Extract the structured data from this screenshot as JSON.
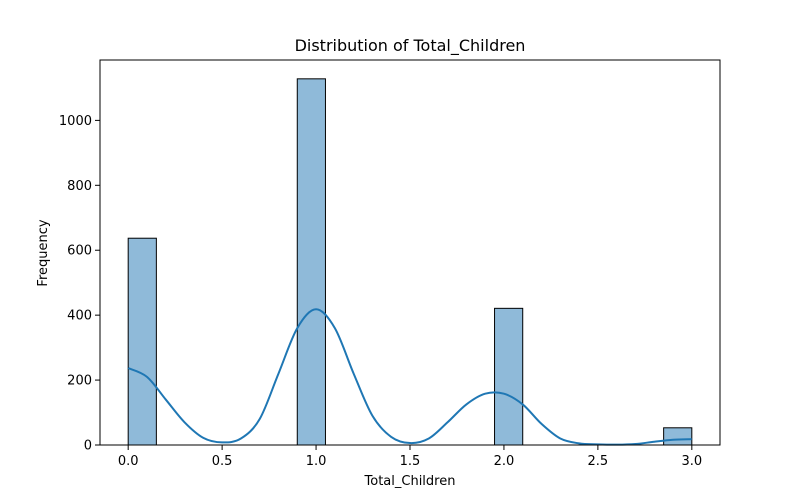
{
  "chart_data": {
    "type": "bar",
    "title": "Distribution of Total_Children",
    "xlabel": "Total_Children",
    "ylabel": "Frequency",
    "xlim": [
      -0.15,
      3.15
    ],
    "ylim": [
      0,
      1186
    ],
    "xticks": [
      0.0,
      0.5,
      1.0,
      1.5,
      2.0,
      2.5,
      3.0
    ],
    "xtick_labels": [
      "0.0",
      "0.5",
      "1.0",
      "1.5",
      "2.0",
      "2.5",
      "3.0"
    ],
    "yticks": [
      0,
      200,
      400,
      600,
      800,
      1000
    ],
    "ytick_labels": [
      "0",
      "200",
      "400",
      "600",
      "800",
      "1000"
    ],
    "bins": [
      {
        "x0": 0.0,
        "x1": 0.15,
        "count": 637
      },
      {
        "x0": 0.9,
        "x1": 1.05,
        "count": 1128
      },
      {
        "x0": 1.95,
        "x1": 2.1,
        "count": 421
      },
      {
        "x0": 2.85,
        "x1": 3.0,
        "count": 53
      }
    ],
    "kde": {
      "x": [
        0.0,
        0.1,
        0.2,
        0.3,
        0.4,
        0.5,
        0.6,
        0.7,
        0.8,
        0.9,
        1.0,
        1.1,
        1.2,
        1.3,
        1.4,
        1.5,
        1.6,
        1.7,
        1.8,
        1.9,
        2.0,
        2.1,
        2.2,
        2.3,
        2.4,
        2.5,
        2.6,
        2.7,
        2.8,
        2.9,
        3.0
      ],
      "y": [
        237,
        210,
        140,
        70,
        22,
        8,
        20,
        80,
        220,
        360,
        418,
        360,
        220,
        90,
        25,
        6,
        20,
        70,
        125,
        158,
        158,
        125,
        65,
        20,
        5,
        2,
        1,
        3,
        10,
        16,
        18
      ]
    },
    "bar_color": "#8fbad9",
    "bar_edge_color": "#000000",
    "line_color": "#1f77b4",
    "grid": false
  }
}
